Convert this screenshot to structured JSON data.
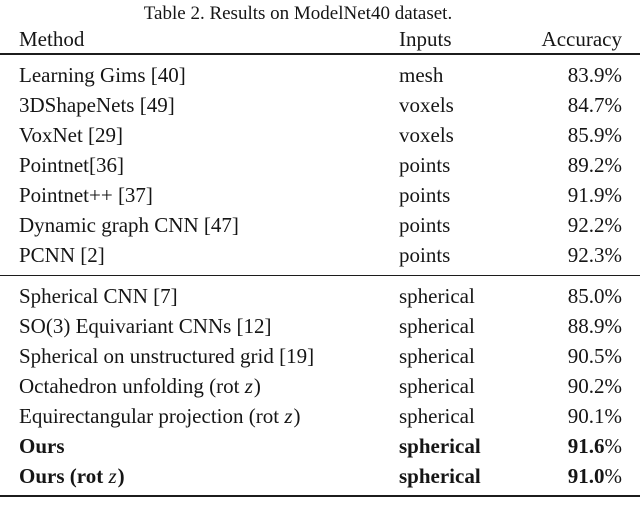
{
  "caption": "Table 2. Results on ModelNet40 dataset.",
  "columns": {
    "method": "Method",
    "inputs": "Inputs",
    "accuracy": "Accuracy"
  },
  "groups": [
    {
      "rows": [
        {
          "method": [
            {
              "t": "Learning Gims [40]"
            }
          ],
          "inputs": "mesh",
          "accuracy": "83.9%",
          "bold": false
        },
        {
          "method": [
            {
              "t": "3DShapeNets [49]"
            }
          ],
          "inputs": "voxels",
          "accuracy": "84.7%",
          "bold": false
        },
        {
          "method": [
            {
              "t": "VoxNet [29]"
            }
          ],
          "inputs": "voxels",
          "accuracy": "85.9%",
          "bold": false
        },
        {
          "method": [
            {
              "t": "Pointnet[36]"
            }
          ],
          "inputs": "points",
          "accuracy": "89.2%",
          "bold": false
        },
        {
          "method": [
            {
              "t": "Pointnet++ [37]"
            }
          ],
          "inputs": "points",
          "accuracy": "91.9%",
          "bold": false
        },
        {
          "method": [
            {
              "t": "Dynamic graph CNN [47]"
            }
          ],
          "inputs": "points",
          "accuracy": "92.2%",
          "bold": false
        },
        {
          "method": [
            {
              "t": "PCNN [2]"
            }
          ],
          "inputs": "points",
          "accuracy": "92.3%",
          "bold": false
        }
      ]
    },
    {
      "rows": [
        {
          "method": [
            {
              "t": "Spherical CNN [7]"
            }
          ],
          "inputs": "spherical",
          "accuracy": "85.0%",
          "bold": false
        },
        {
          "method": [
            {
              "t": "SO(3) Equivariant CNNs [12]"
            }
          ],
          "inputs": "spherical",
          "accuracy": "88.9%",
          "bold": false
        },
        {
          "method": [
            {
              "t": "Spherical on unstructured grid [19]"
            }
          ],
          "inputs": "spherical",
          "accuracy": "90.5%",
          "bold": false
        },
        {
          "method": [
            {
              "t": "Octahedron unfolding (rot "
            },
            {
              "t": "z",
              "italic": true
            },
            {
              "t": ")"
            }
          ],
          "inputs": "spherical",
          "accuracy": "90.2%",
          "bold": false
        },
        {
          "method": [
            {
              "t": "Equirectangular projection (rot "
            },
            {
              "t": "z",
              "italic": true
            },
            {
              "t": ")"
            }
          ],
          "inputs": "spherical",
          "accuracy": "90.1%",
          "bold": false
        },
        {
          "method": [
            {
              "t": "Ours"
            }
          ],
          "inputs": "spherical",
          "accuracy": "91.6%",
          "bold": true
        },
        {
          "method": [
            {
              "t": "Ours (rot "
            },
            {
              "t": "z",
              "italic": true
            },
            {
              "t": ")"
            }
          ],
          "inputs": "spherical",
          "accuracy": "91.0%",
          "bold": true
        }
      ]
    }
  ],
  "colors": {
    "background": "#ffffff",
    "text": "#151515",
    "rule": "#1c1c1c"
  }
}
